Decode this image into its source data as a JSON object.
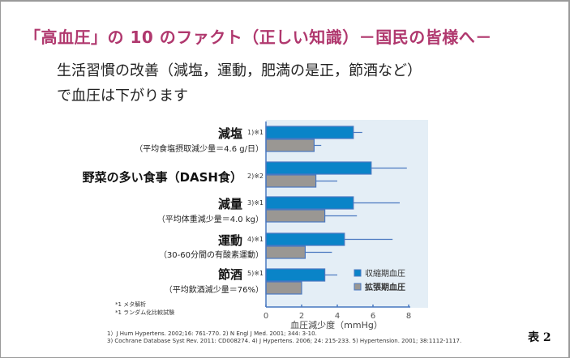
{
  "page": {
    "title": "「高血圧」の 10 のファクト（正しい知識）－国民の皆様へ－",
    "subtitle_line1": "生活習慣の改善（減塩，運動，肥満の是正，節酒など）",
    "subtitle_line2": "で血圧は下がります",
    "table_label": "表 2"
  },
  "categories_display": [
    {
      "main": "減塩",
      "ref": "1)※1",
      "sub": "（平均食塩摂取減少量＝4.6 g/日）"
    },
    {
      "main": "野菜の多い食事（DASH食）",
      "ref": "2)※2",
      "sub": ""
    },
    {
      "main": "減量",
      "ref": "3)※1",
      "sub": "（平均体重減少量＝4.0 kg）"
    },
    {
      "main": "運動",
      "ref": "4)※1",
      "sub": "（30-60分間の有酸素運動）"
    },
    {
      "main": "節酒",
      "ref": "5)※1",
      "sub": "（平均飲酒減少量＝76%）"
    }
  ],
  "notes": {
    "note1": "*1 メタ解析",
    "note2": "*1 ランダム化比較試験"
  },
  "references": {
    "line1": "1）J Hum Hypertens. 2002;16: 761-770. 2) N Engl J  Med. 2001; 344: 3-10.",
    "line2": "3) Cochrane Database Syst Rev. 2011: CD008274. 4) J Hypertens. 2006; 24: 215-233. 5) Hypertension. 2001; 38:1112-1117."
  },
  "colors": {
    "title": "#b0386e",
    "systolic": "#0a84c8",
    "diastolic": "#9a9793",
    "bar_outline": "#4a78c0",
    "plot_bg": "#e4eef6",
    "axis": "#4a78c0"
  },
  "chart_data": {
    "type": "bar",
    "orientation": "horizontal",
    "categories": [
      "減塩",
      "野菜の多い食事（DASH食）",
      "減量",
      "運動",
      "節酒"
    ],
    "series": [
      {
        "name": "収縮期血圧",
        "values": [
          4.9,
          5.9,
          4.9,
          4.4,
          3.3
        ],
        "error_upper": [
          5.4,
          7.9,
          7.5,
          7.1,
          4.0
        ]
      },
      {
        "name": "拡張期血圧",
        "values": [
          2.7,
          2.8,
          3.3,
          2.2,
          2.0
        ],
        "error_upper": [
          3.1,
          4.0,
          5.1,
          3.7,
          null
        ]
      }
    ],
    "xlabel": "血圧減少度（mmHg）",
    "ylabel": "",
    "xlim": [
      0,
      8
    ],
    "xticks": [
      0,
      2,
      4,
      6,
      8
    ],
    "xtick_labels": [
      "0",
      "2",
      "4",
      "6",
      "8"
    ],
    "grid": false,
    "legend_position": "bottom-right",
    "legend": [
      "収縮期血圧",
      "拡張期血圧"
    ]
  }
}
